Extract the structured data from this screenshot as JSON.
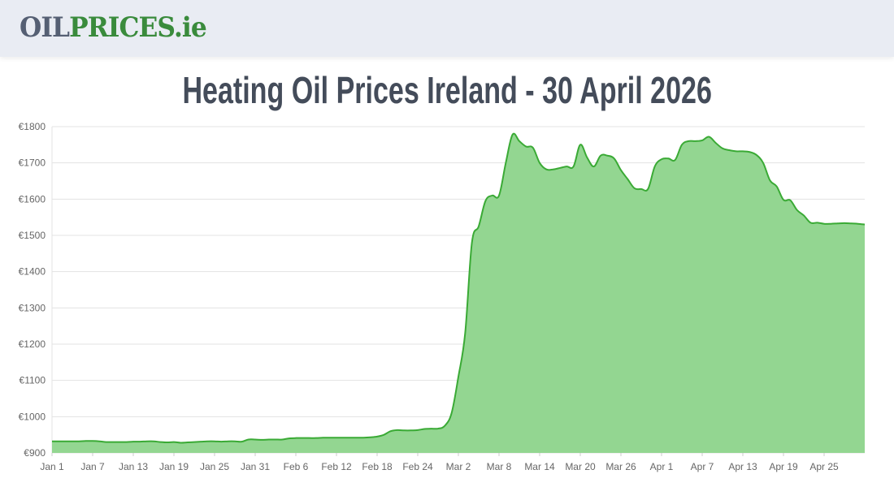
{
  "header": {
    "logo_part1": "OIL",
    "logo_part2": "PRICES.ie"
  },
  "title": "Heating Oil Prices Ireland - 30 April 2026",
  "colors": {
    "line": "#3aaa35",
    "fill": "#93d691",
    "grid": "#e3e3e3",
    "logo_gray": "#555f73",
    "logo_green": "#3a8b3c"
  },
  "chart_data": {
    "type": "area",
    "title": "",
    "xlabel": "",
    "ylabel": "",
    "ylim": [
      900,
      1800
    ],
    "grid": true,
    "legend": "none",
    "y_ticks": [
      "€900",
      "€1000",
      "€1100",
      "€1200",
      "€1300",
      "€1400",
      "€1500",
      "€1600",
      "€1700",
      "€1800"
    ],
    "x_ticks": [
      "Jan 1",
      "Jan 7",
      "Jan 13",
      "Jan 19",
      "Jan 25",
      "Jan 31",
      "Feb 6",
      "Feb 12",
      "Feb 18",
      "Feb 24",
      "Mar 2",
      "Mar 8",
      "Mar 14",
      "Mar 20",
      "Mar 26",
      "Apr 1",
      "Apr 7",
      "Apr 13",
      "Apr 19",
      "Apr 25"
    ],
    "x_tick_interval_days": 6,
    "values": [
      932,
      932,
      932,
      932,
      932,
      933,
      933,
      932,
      930,
      930,
      930,
      930,
      931,
      931,
      932,
      932,
      930,
      929,
      930,
      928,
      929,
      930,
      931,
      932,
      932,
      931,
      932,
      932,
      931,
      937,
      937,
      936,
      937,
      937,
      937,
      940,
      941,
      941,
      941,
      941,
      942,
      942,
      942,
      942,
      942,
      942,
      942,
      943,
      945,
      950,
      960,
      963,
      962,
      962,
      963,
      966,
      967,
      967,
      975,
      1010,
      1110,
      1230,
      1480,
      1525,
      1595,
      1610,
      1610,
      1700,
      1778,
      1760,
      1745,
      1742,
      1700,
      1682,
      1682,
      1686,
      1690,
      1690,
      1750,
      1715,
      1690,
      1720,
      1720,
      1712,
      1680,
      1655,
      1630,
      1628,
      1628,
      1690,
      1710,
      1712,
      1708,
      1750,
      1760,
      1760,
      1762,
      1772,
      1755,
      1740,
      1735,
      1732,
      1732,
      1730,
      1722,
      1700,
      1652,
      1635,
      1598,
      1597,
      1570,
      1555,
      1535,
      1535,
      1532,
      1532,
      1533,
      1534,
      1533,
      1532,
      1530
    ]
  }
}
